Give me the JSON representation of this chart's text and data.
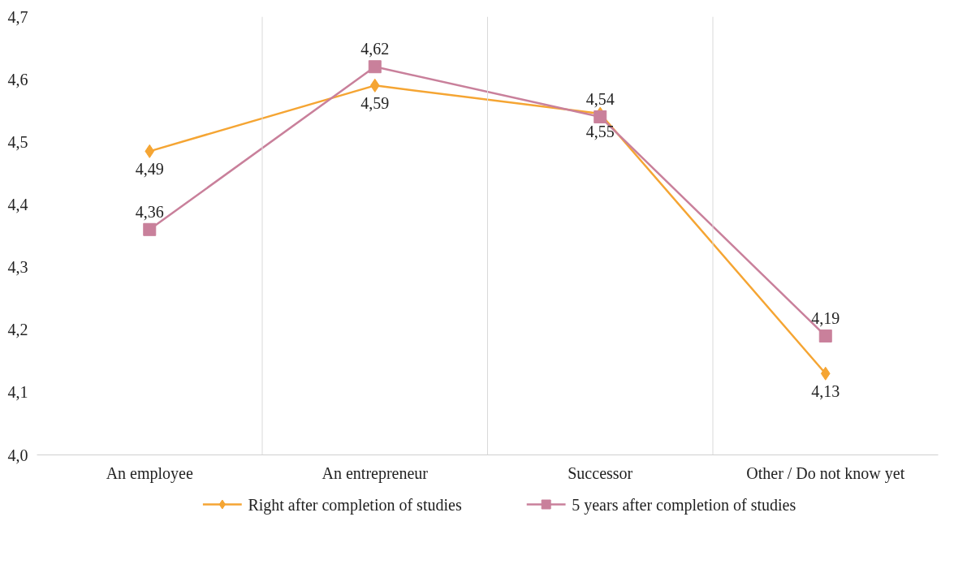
{
  "chart_data": {
    "type": "line",
    "categories": [
      "An employee",
      "An entrepreneur",
      "Successor",
      "Other / Do not know yet"
    ],
    "series": [
      {
        "name": "Right after completion of studies",
        "color": "#f5a533",
        "marker": "diamond",
        "values": [
          4.485,
          4.59,
          4.545,
          4.13
        ],
        "value_labels": [
          "4,49",
          "4,59",
          "4,55",
          "4,13"
        ]
      },
      {
        "name": "5 years after completion of studies",
        "color": "#c9809b",
        "marker": "square",
        "values": [
          4.36,
          4.62,
          4.54,
          4.19
        ],
        "value_labels": [
          "4,36",
          "4,62",
          "4,54",
          "4,19"
        ]
      }
    ],
    "ylim": [
      4.0,
      4.7
    ],
    "yticks": [
      {
        "value": 4.0,
        "label": "4,0"
      },
      {
        "value": 4.1,
        "label": "4,1"
      },
      {
        "value": 4.2,
        "label": "4,2"
      },
      {
        "value": 4.3,
        "label": "4,3"
      },
      {
        "value": 4.4,
        "label": "4,4"
      },
      {
        "value": 4.5,
        "label": "4,5"
      },
      {
        "value": 4.6,
        "label": "4,6"
      },
      {
        "value": 4.7,
        "label": "4,7"
      }
    ],
    "grid": "x",
    "legend": "bottom",
    "line_style": "solid"
  }
}
